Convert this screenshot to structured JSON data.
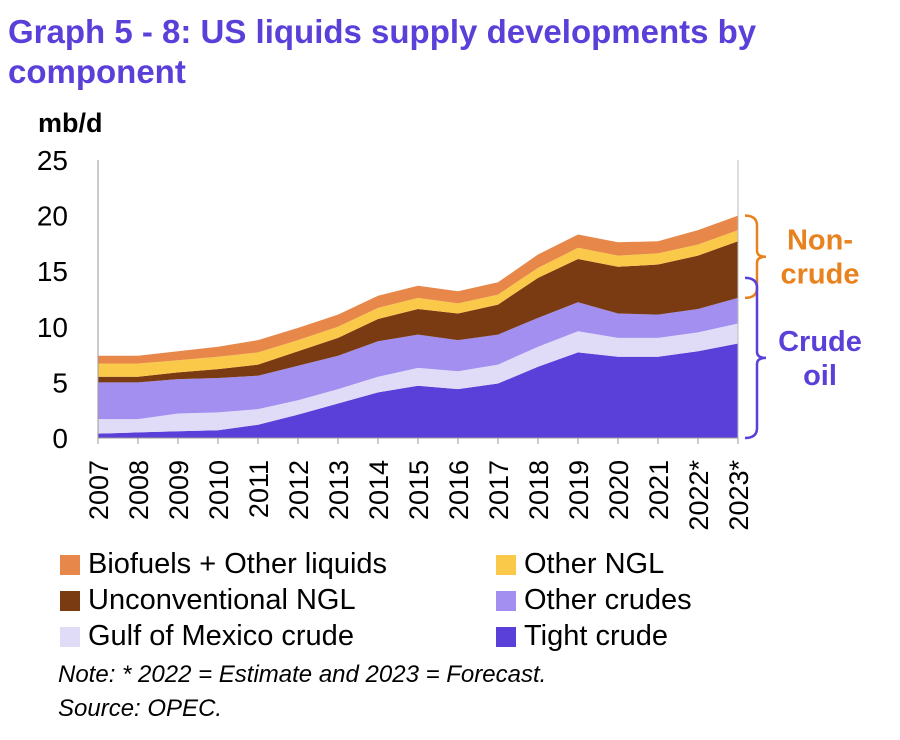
{
  "page": {
    "title": "Graph 5 - 8: US liquids supply developments by component",
    "note": "Note: * 2022 = Estimate and 2023 = Forecast.",
    "source": "Source: OPEC."
  },
  "colors": {
    "title": "#5b3fd9",
    "brace_noncrude": "#e8821e",
    "brace_crude": "#5b3fd9"
  },
  "chart_data": {
    "type": "area",
    "stacked": true,
    "ylabel": "mb/d",
    "xlabel": "",
    "ylim": [
      0,
      25
    ],
    "yticks": [
      0,
      5,
      10,
      15,
      20,
      25
    ],
    "grid": false,
    "legend_position": "bottom",
    "categories": [
      "2007",
      "2008",
      "2009",
      "2010",
      "2011",
      "2012",
      "2013",
      "2014",
      "2015",
      "2016",
      "2017",
      "2018",
      "2019",
      "2020",
      "2021",
      "2022*",
      "2023*"
    ],
    "series": [
      {
        "name": "Tight crude",
        "color": "#5b3fd9",
        "values": [
          0.4,
          0.5,
          0.6,
          0.7,
          1.2,
          2.1,
          3.1,
          4.1,
          4.7,
          4.4,
          4.9,
          6.4,
          7.7,
          7.3,
          7.3,
          7.8,
          8.5
        ]
      },
      {
        "name": "Gulf of Mexico crude",
        "color": "#e0dcf7",
        "values": [
          1.3,
          1.2,
          1.6,
          1.6,
          1.4,
          1.3,
          1.3,
          1.4,
          1.6,
          1.6,
          1.7,
          1.8,
          1.9,
          1.7,
          1.7,
          1.7,
          1.8
        ]
      },
      {
        "name": "Other crudes",
        "color": "#a28ff0",
        "values": [
          3.3,
          3.3,
          3.1,
          3.1,
          3.0,
          3.1,
          3.0,
          3.2,
          3.0,
          2.8,
          2.7,
          2.6,
          2.6,
          2.2,
          2.1,
          2.1,
          2.3
        ]
      },
      {
        "name": "Unconventional NGL",
        "color": "#7a3b12",
        "values": [
          0.5,
          0.5,
          0.6,
          0.8,
          1.0,
          1.3,
          1.6,
          2.0,
          2.3,
          2.4,
          2.7,
          3.6,
          3.9,
          4.2,
          4.5,
          4.8,
          5.1
        ]
      },
      {
        "name": "Other NGL",
        "color": "#fac94a",
        "values": [
          1.2,
          1.2,
          1.1,
          1.1,
          1.1,
          1.0,
          1.0,
          1.0,
          1.0,
          0.9,
          0.9,
          0.9,
          1.0,
          1.0,
          1.0,
          1.0,
          1.0
        ]
      },
      {
        "name": "Biofuels + Other liquids",
        "color": "#e8874a",
        "values": [
          0.7,
          0.7,
          0.8,
          0.9,
          1.1,
          1.1,
          1.1,
          1.1,
          1.1,
          1.1,
          1.1,
          1.2,
          1.2,
          1.2,
          1.1,
          1.3,
          1.3
        ]
      }
    ],
    "legend_order": [
      5,
      4,
      3,
      2,
      1,
      0
    ],
    "annotations": [
      {
        "label_lines": [
          "Non-",
          "crude"
        ],
        "from": 12.6,
        "to": 20.0,
        "color": "#e8821e"
      },
      {
        "label_lines": [
          "Crude",
          "oil"
        ],
        "from": 0,
        "to": 14.4,
        "color": "#5b3fd9"
      }
    ]
  }
}
